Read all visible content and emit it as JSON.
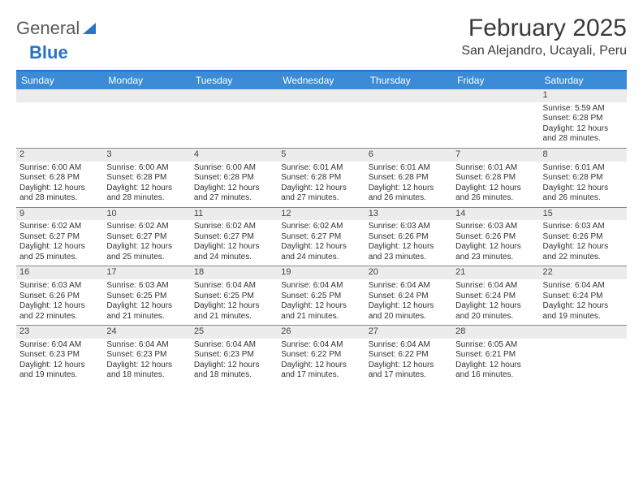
{
  "logo": {
    "text1": "General",
    "text2": "Blue"
  },
  "title": "February 2025",
  "location": "San Alejandro, Ucayali, Peru",
  "colors": {
    "header_bar": "#3b8bd6",
    "header_border": "#2a72c4",
    "daynum_bg": "#ececec",
    "text": "#333333",
    "row_border": "#888888"
  },
  "day_headers": [
    "Sunday",
    "Monday",
    "Tuesday",
    "Wednesday",
    "Thursday",
    "Friday",
    "Saturday"
  ],
  "weeks": [
    [
      {
        "n": "",
        "sr": "",
        "ss": "",
        "d1": "",
        "d2": ""
      },
      {
        "n": "",
        "sr": "",
        "ss": "",
        "d1": "",
        "d2": ""
      },
      {
        "n": "",
        "sr": "",
        "ss": "",
        "d1": "",
        "d2": ""
      },
      {
        "n": "",
        "sr": "",
        "ss": "",
        "d1": "",
        "d2": ""
      },
      {
        "n": "",
        "sr": "",
        "ss": "",
        "d1": "",
        "d2": ""
      },
      {
        "n": "",
        "sr": "",
        "ss": "",
        "d1": "",
        "d2": ""
      },
      {
        "n": "1",
        "sr": "Sunrise: 5:59 AM",
        "ss": "Sunset: 6:28 PM",
        "d1": "Daylight: 12 hours",
        "d2": "and 28 minutes."
      }
    ],
    [
      {
        "n": "2",
        "sr": "Sunrise: 6:00 AM",
        "ss": "Sunset: 6:28 PM",
        "d1": "Daylight: 12 hours",
        "d2": "and 28 minutes."
      },
      {
        "n": "3",
        "sr": "Sunrise: 6:00 AM",
        "ss": "Sunset: 6:28 PM",
        "d1": "Daylight: 12 hours",
        "d2": "and 28 minutes."
      },
      {
        "n": "4",
        "sr": "Sunrise: 6:00 AM",
        "ss": "Sunset: 6:28 PM",
        "d1": "Daylight: 12 hours",
        "d2": "and 27 minutes."
      },
      {
        "n": "5",
        "sr": "Sunrise: 6:01 AM",
        "ss": "Sunset: 6:28 PM",
        "d1": "Daylight: 12 hours",
        "d2": "and 27 minutes."
      },
      {
        "n": "6",
        "sr": "Sunrise: 6:01 AM",
        "ss": "Sunset: 6:28 PM",
        "d1": "Daylight: 12 hours",
        "d2": "and 26 minutes."
      },
      {
        "n": "7",
        "sr": "Sunrise: 6:01 AM",
        "ss": "Sunset: 6:28 PM",
        "d1": "Daylight: 12 hours",
        "d2": "and 26 minutes."
      },
      {
        "n": "8",
        "sr": "Sunrise: 6:01 AM",
        "ss": "Sunset: 6:28 PM",
        "d1": "Daylight: 12 hours",
        "d2": "and 26 minutes."
      }
    ],
    [
      {
        "n": "9",
        "sr": "Sunrise: 6:02 AM",
        "ss": "Sunset: 6:27 PM",
        "d1": "Daylight: 12 hours",
        "d2": "and 25 minutes."
      },
      {
        "n": "10",
        "sr": "Sunrise: 6:02 AM",
        "ss": "Sunset: 6:27 PM",
        "d1": "Daylight: 12 hours",
        "d2": "and 25 minutes."
      },
      {
        "n": "11",
        "sr": "Sunrise: 6:02 AM",
        "ss": "Sunset: 6:27 PM",
        "d1": "Daylight: 12 hours",
        "d2": "and 24 minutes."
      },
      {
        "n": "12",
        "sr": "Sunrise: 6:02 AM",
        "ss": "Sunset: 6:27 PM",
        "d1": "Daylight: 12 hours",
        "d2": "and 24 minutes."
      },
      {
        "n": "13",
        "sr": "Sunrise: 6:03 AM",
        "ss": "Sunset: 6:26 PM",
        "d1": "Daylight: 12 hours",
        "d2": "and 23 minutes."
      },
      {
        "n": "14",
        "sr": "Sunrise: 6:03 AM",
        "ss": "Sunset: 6:26 PM",
        "d1": "Daylight: 12 hours",
        "d2": "and 23 minutes."
      },
      {
        "n": "15",
        "sr": "Sunrise: 6:03 AM",
        "ss": "Sunset: 6:26 PM",
        "d1": "Daylight: 12 hours",
        "d2": "and 22 minutes."
      }
    ],
    [
      {
        "n": "16",
        "sr": "Sunrise: 6:03 AM",
        "ss": "Sunset: 6:26 PM",
        "d1": "Daylight: 12 hours",
        "d2": "and 22 minutes."
      },
      {
        "n": "17",
        "sr": "Sunrise: 6:03 AM",
        "ss": "Sunset: 6:25 PM",
        "d1": "Daylight: 12 hours",
        "d2": "and 21 minutes."
      },
      {
        "n": "18",
        "sr": "Sunrise: 6:04 AM",
        "ss": "Sunset: 6:25 PM",
        "d1": "Daylight: 12 hours",
        "d2": "and 21 minutes."
      },
      {
        "n": "19",
        "sr": "Sunrise: 6:04 AM",
        "ss": "Sunset: 6:25 PM",
        "d1": "Daylight: 12 hours",
        "d2": "and 21 minutes."
      },
      {
        "n": "20",
        "sr": "Sunrise: 6:04 AM",
        "ss": "Sunset: 6:24 PM",
        "d1": "Daylight: 12 hours",
        "d2": "and 20 minutes."
      },
      {
        "n": "21",
        "sr": "Sunrise: 6:04 AM",
        "ss": "Sunset: 6:24 PM",
        "d1": "Daylight: 12 hours",
        "d2": "and 20 minutes."
      },
      {
        "n": "22",
        "sr": "Sunrise: 6:04 AM",
        "ss": "Sunset: 6:24 PM",
        "d1": "Daylight: 12 hours",
        "d2": "and 19 minutes."
      }
    ],
    [
      {
        "n": "23",
        "sr": "Sunrise: 6:04 AM",
        "ss": "Sunset: 6:23 PM",
        "d1": "Daylight: 12 hours",
        "d2": "and 19 minutes."
      },
      {
        "n": "24",
        "sr": "Sunrise: 6:04 AM",
        "ss": "Sunset: 6:23 PM",
        "d1": "Daylight: 12 hours",
        "d2": "and 18 minutes."
      },
      {
        "n": "25",
        "sr": "Sunrise: 6:04 AM",
        "ss": "Sunset: 6:23 PM",
        "d1": "Daylight: 12 hours",
        "d2": "and 18 minutes."
      },
      {
        "n": "26",
        "sr": "Sunrise: 6:04 AM",
        "ss": "Sunset: 6:22 PM",
        "d1": "Daylight: 12 hours",
        "d2": "and 17 minutes."
      },
      {
        "n": "27",
        "sr": "Sunrise: 6:04 AM",
        "ss": "Sunset: 6:22 PM",
        "d1": "Daylight: 12 hours",
        "d2": "and 17 minutes."
      },
      {
        "n": "28",
        "sr": "Sunrise: 6:05 AM",
        "ss": "Sunset: 6:21 PM",
        "d1": "Daylight: 12 hours",
        "d2": "and 16 minutes."
      },
      {
        "n": "",
        "sr": "",
        "ss": "",
        "d1": "",
        "d2": ""
      }
    ]
  ]
}
